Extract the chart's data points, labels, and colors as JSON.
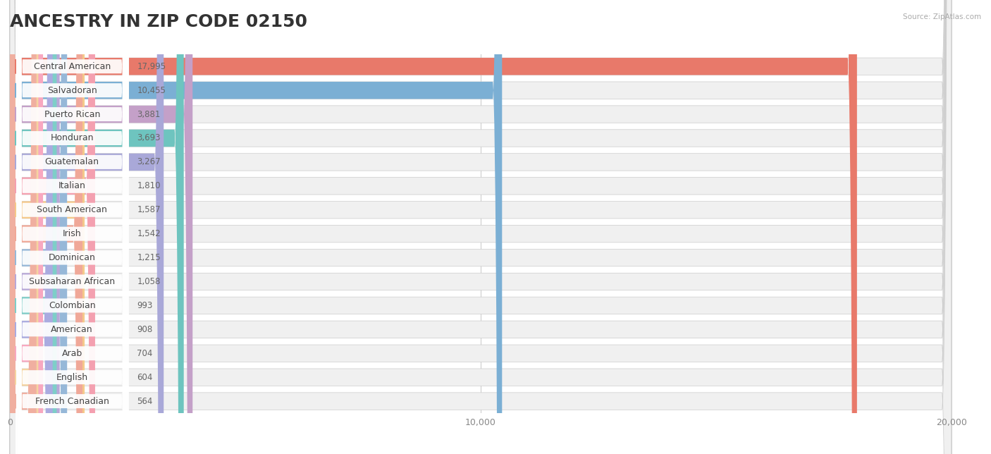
{
  "title": "ANCESTRY IN ZIP CODE 02150",
  "source": "Source: ZipAtlas.com",
  "categories": [
    "Central American",
    "Salvadoran",
    "Puerto Rican",
    "Honduran",
    "Guatemalan",
    "Italian",
    "South American",
    "Irish",
    "Dominican",
    "Subsaharan African",
    "Colombian",
    "American",
    "Arab",
    "English",
    "French Canadian"
  ],
  "values": [
    17995,
    10455,
    3881,
    3693,
    3267,
    1810,
    1587,
    1542,
    1215,
    1058,
    993,
    908,
    704,
    604,
    564
  ],
  "bar_colors": [
    "#E8796A",
    "#7BAFD4",
    "#C4A0C8",
    "#6EC4BF",
    "#A9A8D8",
    "#F4A0B0",
    "#F5C98A",
    "#F0A898",
    "#96B8D8",
    "#B8A8D8",
    "#7ECEC8",
    "#AAABE0",
    "#F8A8C0",
    "#F5D4A0",
    "#F0AFA0"
  ],
  "xlim": [
    0,
    20000
  ],
  "xticks": [
    0,
    10000,
    20000
  ],
  "xticklabels": [
    "0",
    "10,000",
    "20,000"
  ],
  "background_color": "#ffffff",
  "row_bg_color": "#eeeeee",
  "title_fontsize": 18,
  "label_fontsize": 9,
  "value_fontsize": 8.5
}
